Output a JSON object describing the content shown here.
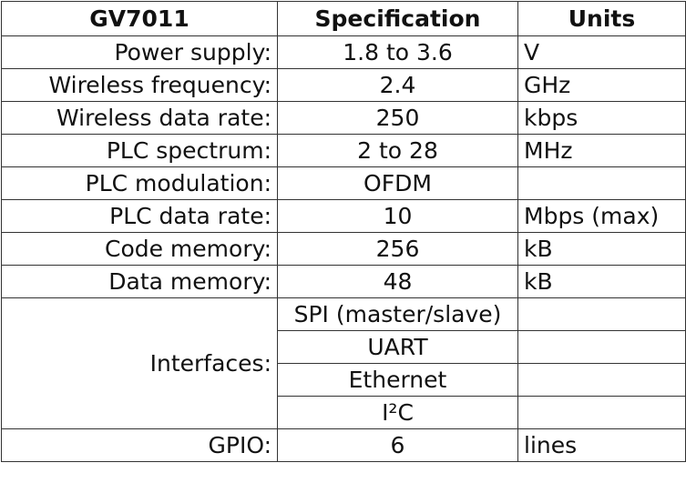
{
  "table": {
    "header": [
      "GV7011",
      "Specification",
      "Units"
    ],
    "rows": [
      {
        "label": "Power supply:",
        "spec": "1.8 to 3.6",
        "units": "V"
      },
      {
        "label": "Wireless frequency:",
        "spec": "2.4",
        "units": "GHz"
      },
      {
        "label": "Wireless data rate:",
        "spec": "250",
        "units": "kbps"
      },
      {
        "label": "PLC spectrum:",
        "spec": "2 to 28",
        "units": "MHz"
      },
      {
        "label": "PLC modulation:",
        "spec": "OFDM"
      },
      {
        "label": "PLC data rate:",
        "spec": "10",
        "units": "Mbps (max)"
      },
      {
        "label": "Code memory:",
        "spec": "256",
        "units": "kB"
      },
      {
        "label": "Data memory:",
        "spec": "48",
        "units": "kB"
      }
    ],
    "interfaces": {
      "label": "Interfaces:",
      "specs": [
        "SPI (master/slave)",
        "UART",
        "Ethernet",
        "I²C"
      ]
    },
    "gpio": {
      "label": "GPIO:",
      "spec": "6",
      "units": "lines"
    }
  }
}
